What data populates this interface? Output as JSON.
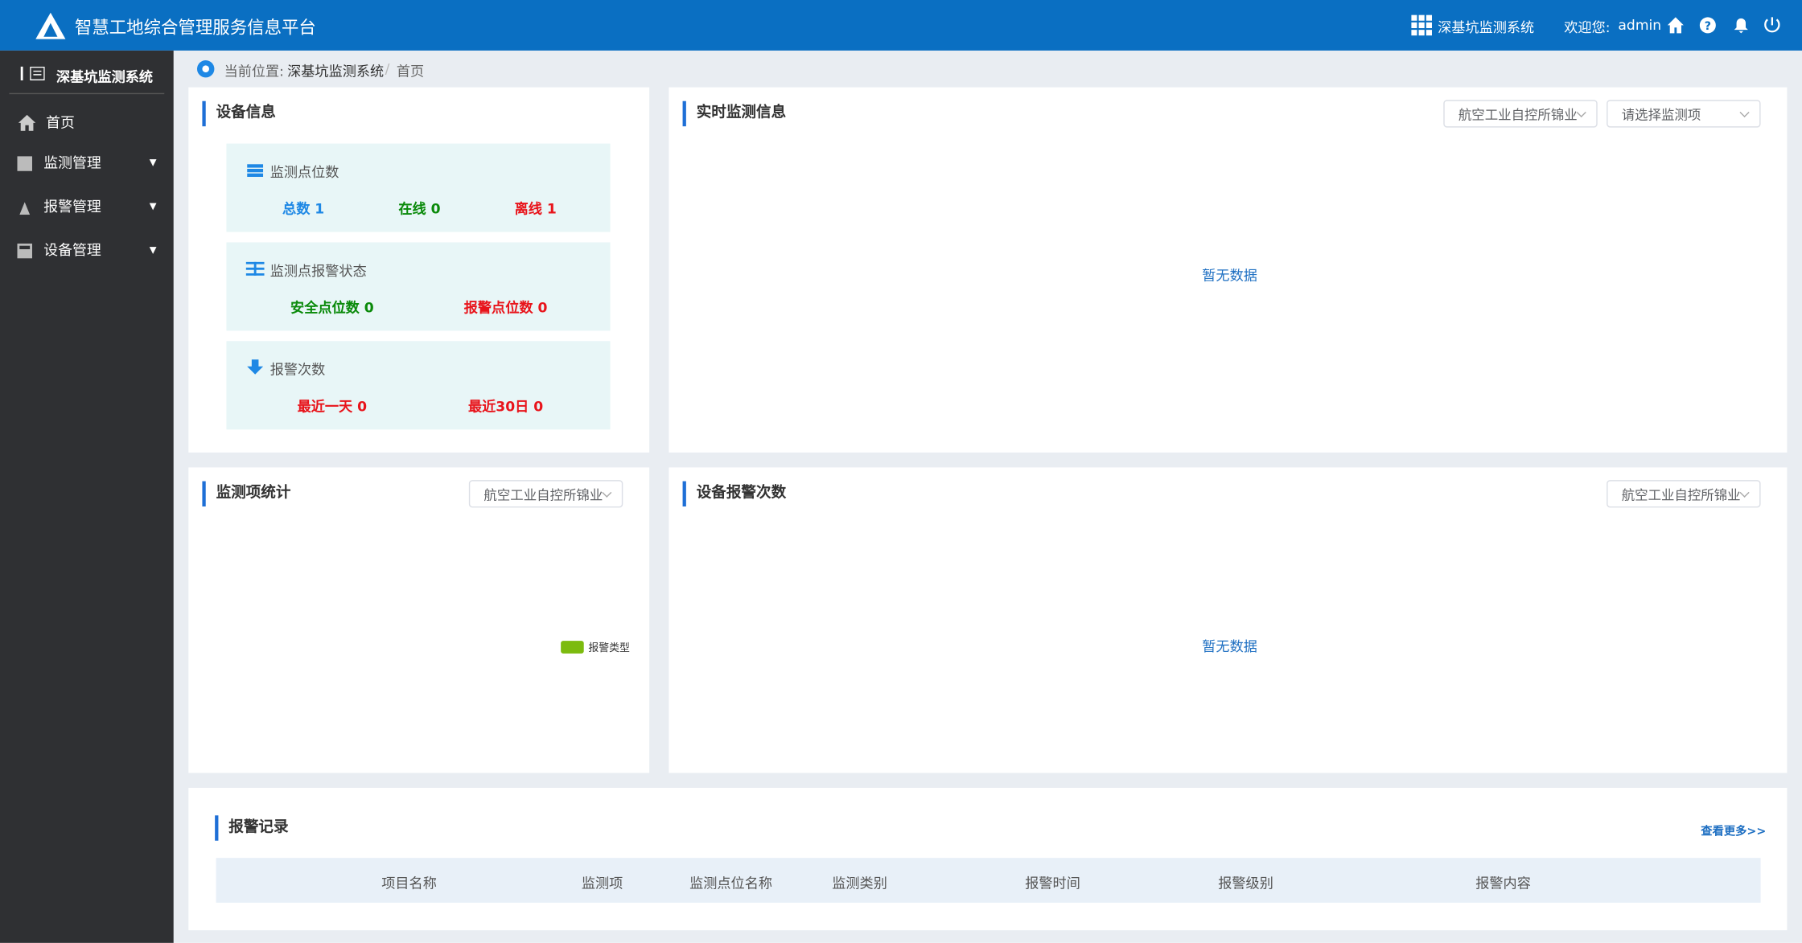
{
  "header": {
    "title": "智慧工地综合管理服务信息平台",
    "system": "深基坑监测系统",
    "welcome": "欢迎您:",
    "user": "admin"
  },
  "sidebar": {
    "title": "深基坑监测系统",
    "menu": [
      "首页",
      "监测管理",
      "报警管理",
      "设备管理"
    ]
  },
  "breadcrumb": {
    "label": "当前位置:",
    "items": [
      "深基坑监测系统",
      "首页"
    ]
  },
  "device_info": {
    "title": "设备信息",
    "groups": [
      {
        "title": "监测点位数",
        "stats": [
          "总数 1",
          "在线 0",
          "离线 1"
        ]
      },
      {
        "title": "监测点报警状态",
        "stats": [
          "安全点位数 0",
          "报警点位数 0"
        ]
      },
      {
        "title": "报警次数",
        "stats": [
          "最近一天 0",
          "最近30日 0"
        ]
      }
    ]
  },
  "realtime": {
    "title": "实时监测信息",
    "selects": [
      "航空工业自控所锦业",
      "请选择监测项"
    ],
    "empty": "暂无数据"
  },
  "item_stats": {
    "title": "监测项统计",
    "select": "航空工业自控所锦业",
    "legend": "报警类型"
  },
  "alarm_count": {
    "title": "设备报警次数",
    "select": "航空工业自控所锦业",
    "empty": "暂无数据"
  },
  "records": {
    "title": "报警记录",
    "more": "查看更多>>",
    "columns": [
      "项目名称",
      "监测项",
      "监测点位名称",
      "监测类别",
      "报警时间",
      "报警级别",
      "报警内容"
    ]
  }
}
